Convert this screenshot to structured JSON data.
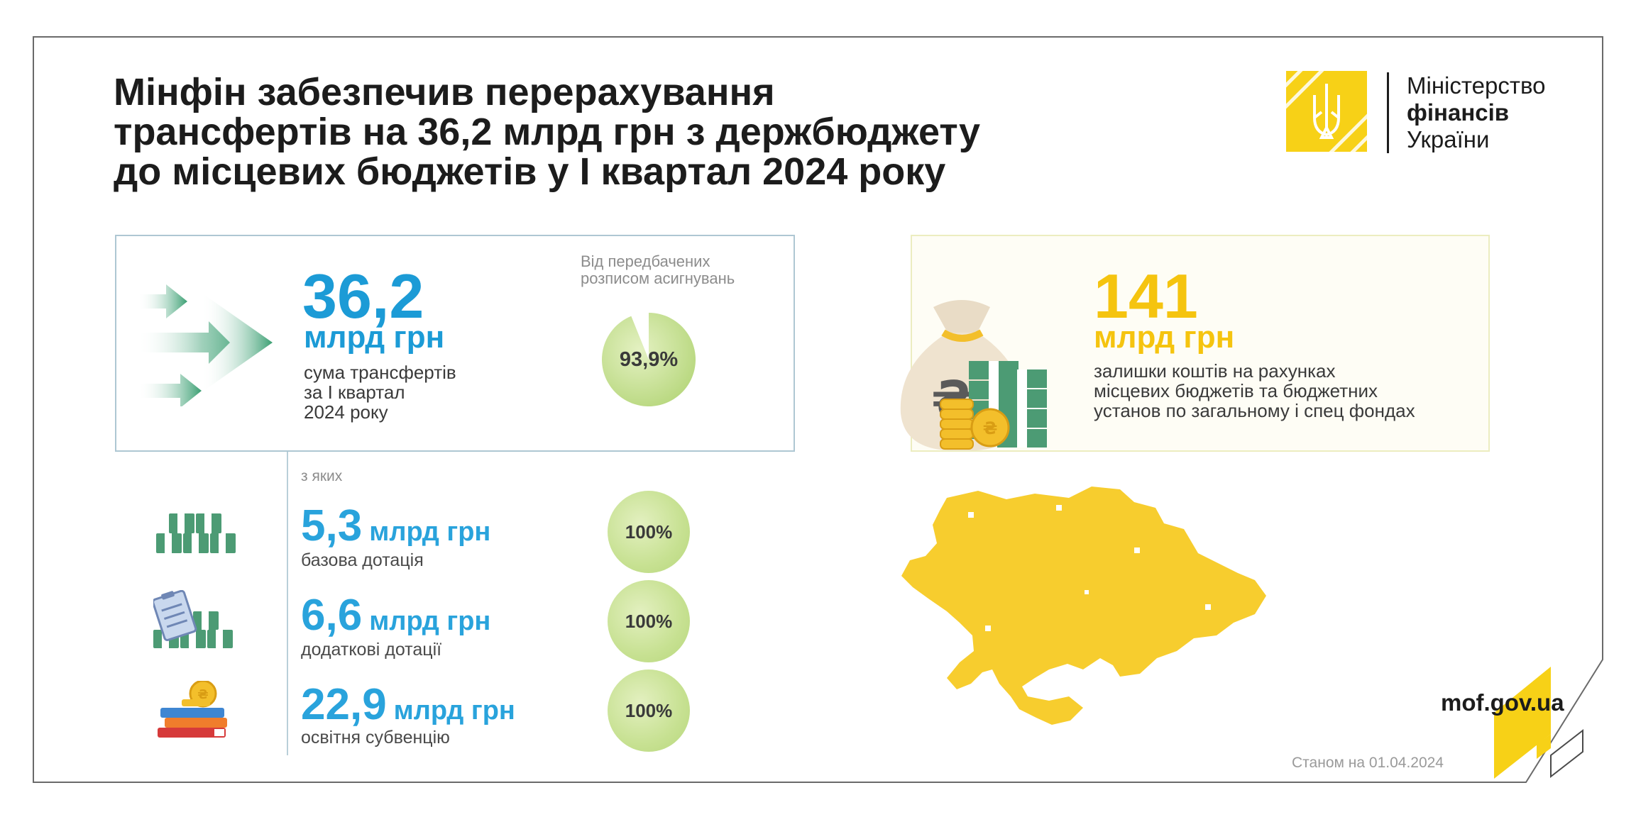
{
  "header": {
    "title_lines": [
      "Мінфін забезпечив перерахування",
      "трансфертів на 36,2 млрд грн з держбюджету",
      "до місцевих бюджетів у I квартал 2024 року"
    ]
  },
  "logo": {
    "emblem_icon": "trident-emblem-icon",
    "line1": "Міністерство",
    "line2": "фінансів",
    "line3": "України",
    "color": "#f7d117"
  },
  "main_card": {
    "value": "36,2",
    "unit": "млрд грн",
    "desc_lines": [
      "сума трансфертів",
      "за I квартал",
      "2024 року"
    ],
    "ref_lines": [
      "Від передбачених",
      "розписом асигнувань"
    ],
    "pie_label": "93,9%",
    "pie_fraction": 0.939,
    "accent_color": "#1c9bd6"
  },
  "breakdown": {
    "of_which": "з яких",
    "rows": [
      {
        "value": "5,3",
        "unit": "млрд грн",
        "desc": "базова дотація",
        "badge": "100%",
        "icon": "money-stacks-icon"
      },
      {
        "value": "6,6",
        "unit": "млрд грн",
        "desc": "додаткові дотації",
        "badge": "100%",
        "icon": "clipboard-money-icon"
      },
      {
        "value": "22,9",
        "unit": "млрд грн",
        "desc": "освітня субвенцію",
        "badge": "100%",
        "icon": "books-coin-icon"
      }
    ]
  },
  "side_card": {
    "value": "141",
    "unit": "млрд грн",
    "desc_lines": [
      "залишки коштів на рахунках",
      "місцевих бюджетів та бюджетних",
      "установ по загальному і спец фондах"
    ],
    "icon": "money-bag-icon",
    "accent_color": "#f5c40f"
  },
  "map": {
    "icon": "ukraine-map-icon",
    "color": "#f7cd2e"
  },
  "footer": {
    "site": "mof.gov.ua",
    "as_of": "Станом на 01.04.2024"
  }
}
